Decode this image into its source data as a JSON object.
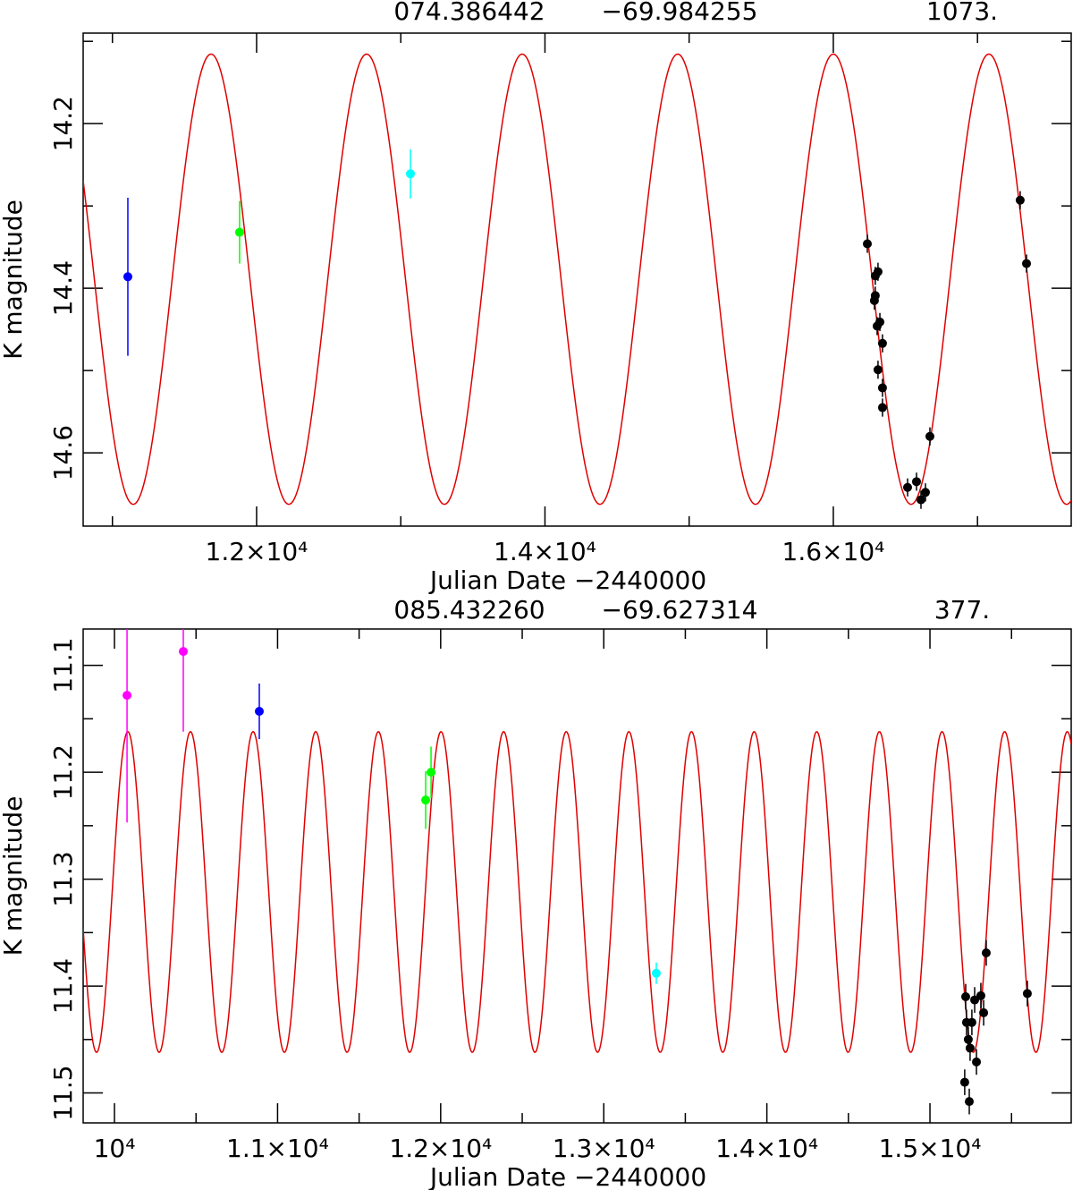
{
  "chart_data": [
    {
      "type": "scatter",
      "title": [
        "074.386442",
        "−69.984255",
        "1073."
      ],
      "x_label": "Julian Date −2440000",
      "y_label": "K magnitude",
      "xlim": [
        10797,
        17650
      ],
      "ylim": [
        14.09,
        14.689
      ],
      "y_inverted": true,
      "xticks": [
        {
          "value": 12000,
          "label": "1.2×10⁴"
        },
        {
          "value": 14000,
          "label": "1.4×10⁴"
        },
        {
          "value": 16000,
          "label": "1.6×10⁴"
        }
      ],
      "xticks_minor": [
        11000,
        13000,
        15000,
        17000
      ],
      "yticks": [
        14.2,
        14.4,
        14.6
      ],
      "yticks_minor": [
        14.1,
        14.3,
        14.5
      ],
      "model": {
        "color": "#e00000",
        "period": 1079,
        "mean": 14.389,
        "amplitude": 0.2735,
        "t_max": 16000
      },
      "series": [
        {
          "color": "#0000ff",
          "x": [
            11107
          ],
          "values": [
            14.386
          ],
          "errors": [
            0.096
          ]
        },
        {
          "color": "#00ff00",
          "x": [
            11882
          ],
          "values": [
            14.332
          ],
          "errors": [
            0.038
          ]
        },
        {
          "color": "#00ffff",
          "x": [
            13067
          ],
          "values": [
            14.261
          ],
          "errors": [
            0.03
          ]
        },
        {
          "color": "#000000",
          "x": [
            16236,
            16291,
            16310,
            16291,
            16285,
            16304,
            16323,
            16341,
            16310,
            16341,
            16341,
            16670,
            16515,
            16577,
            16608,
            16639,
            17296,
            17340
          ],
          "values": [
            14.346,
            14.385,
            14.38,
            14.409,
            14.415,
            14.446,
            14.441,
            14.467,
            14.499,
            14.521,
            14.545,
            14.58,
            14.642,
            14.635,
            14.657,
            14.648,
            14.293,
            14.37
          ],
          "errors": [
            0.011,
            0.011,
            0.011,
            0.011,
            0.011,
            0.011,
            0.011,
            0.011,
            0.011,
            0.011,
            0.011,
            0.011,
            0.011,
            0.011,
            0.011,
            0.011,
            0.011,
            0.011
          ]
        }
      ]
    },
    {
      "type": "scatter",
      "title": [
        "085.432260",
        "−69.627314",
        "377."
      ],
      "x_label": "Julian Date −2440000",
      "y_label": "K magnitude",
      "xlim": [
        9808,
        15866
      ],
      "ylim": [
        11.066,
        11.528
      ],
      "y_inverted": true,
      "xticks": [
        {
          "value": 10000,
          "label": "10⁴"
        },
        {
          "value": 11000,
          "label": "1.1×10⁴"
        },
        {
          "value": 12000,
          "label": "1.2×10⁴"
        },
        {
          "value": 13000,
          "label": "1.3×10⁴"
        },
        {
          "value": 14000,
          "label": "1.4×10⁴"
        },
        {
          "value": 15000,
          "label": "1.5×10⁴"
        }
      ],
      "xticks_minor": [
        10500,
        11500,
        12500,
        13500,
        14500,
        15500
      ],
      "yticks": [
        11.1,
        11.2,
        11.3,
        11.4,
        11.5
      ],
      "yticks_minor": [
        11.15,
        11.25,
        11.35,
        11.45
      ],
      "model": {
        "color": "#e00000",
        "period": 384,
        "mean": 11.312,
        "amplitude": 0.15,
        "t_max": 10082
      },
      "series": [
        {
          "color": "#ff00ff",
          "x": [
            10077,
            10422
          ],
          "values": [
            11.128,
            11.087
          ],
          "errors": [
            0.119,
            0.075
          ]
        },
        {
          "color": "#0000ff",
          "x": [
            10888
          ],
          "values": [
            11.143
          ],
          "errors": [
            0.026
          ]
        },
        {
          "color": "#00ff00",
          "x": [
            11908,
            11941
          ],
          "values": [
            11.226,
            11.2
          ],
          "errors": [
            0.027,
            0.024
          ]
        },
        {
          "color": "#00ffff",
          "x": [
            13322
          ],
          "values": [
            11.388
          ],
          "errors": [
            0.01
          ]
        },
        {
          "color": "#000000",
          "x": [
            15219,
            15224,
            15235,
            15246,
            15213,
            15241,
            15257,
            15274,
            15285,
            15312,
            15329,
            15345,
            15597
          ],
          "values": [
            11.41,
            11.434,
            11.45,
            11.458,
            11.49,
            11.508,
            11.434,
            11.413,
            11.471,
            11.409,
            11.425,
            11.369,
            11.407
          ],
          "errors": [
            0.012,
            0.012,
            0.012,
            0.012,
            0.012,
            0.012,
            0.012,
            0.012,
            0.012,
            0.012,
            0.012,
            0.012,
            0.012
          ]
        }
      ]
    }
  ]
}
